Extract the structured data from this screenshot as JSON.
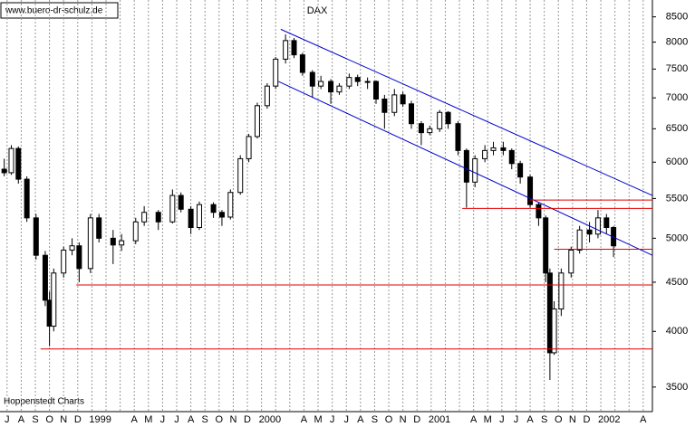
{
  "site": "www.buero-dr-schulz.de",
  "source": "Hoppenstedt Charts",
  "chart_data": {
    "type": "candlestick",
    "title": "DAX",
    "log_scale": true,
    "grid": true,
    "categories": [
      "J",
      "A",
      "S",
      "O",
      "N",
      "D",
      "1999",
      null,
      null,
      "A",
      "M",
      "J",
      "J",
      "A",
      "S",
      "O",
      "N",
      "D",
      "2000",
      null,
      null,
      "A",
      "M",
      "J",
      "J",
      "A",
      "S",
      "O",
      "N",
      "D",
      "2001",
      null,
      null,
      "A",
      "M",
      "J",
      "J",
      "A",
      "S",
      "O",
      "N",
      "D",
      "2002",
      null,
      null,
      "A"
    ],
    "xlim": [
      -0.5,
      45.65
    ],
    "ylim": [
      3300,
      8850
    ],
    "yticks": [
      3500,
      4000,
      4500,
      5000,
      5500,
      6000,
      6500,
      7000,
      7500,
      8000,
      8500
    ],
    "up_color": "#ffffff",
    "down_color": "#000000",
    "x": [
      -0.2,
      0.3,
      0.8,
      1.4,
      2.05,
      2.7,
      3.0,
      3.3,
      4.0,
      4.6,
      5.1,
      5.9,
      6.5,
      7.5,
      8.1,
      9.1,
      9.7,
      10.7,
      11.7,
      12.3,
      13.0,
      13.6,
      14.6,
      15.2,
      15.8,
      16.5,
      17.1,
      17.7,
      18.4,
      19.0,
      19.7,
      20.3,
      20.9,
      21.6,
      22.2,
      22.9,
      23.5,
      24.2,
      24.8,
      25.5,
      26.1,
      26.7,
      27.4,
      28.0,
      28.6,
      29.3,
      29.9,
      30.6,
      31.2,
      31.9,
      32.5,
      33.1,
      33.8,
      34.4,
      35.1,
      35.7,
      36.3,
      37.0,
      37.6,
      38.1,
      38.4,
      38.7,
      39.2,
      39.9,
      40.5,
      41.2,
      41.8,
      42.4,
      42.9
    ],
    "open": [
      5900,
      5850,
      6200,
      5760,
      5250,
      4800,
      4310,
      4050,
      4600,
      4860,
      4910,
      4650,
      5250,
      5000,
      4920,
      4970,
      5200,
      5320,
      5200,
      5540,
      5360,
      5130,
      5420,
      5320,
      5260,
      5580,
      6050,
      6380,
      6870,
      7200,
      7680,
      8030,
      7760,
      7440,
      7200,
      7280,
      7100,
      7200,
      7350,
      7280,
      7280,
      6980,
      6760,
      7050,
      6900,
      6580,
      6440,
      6500,
      6760,
      6580,
      6170,
      5720,
      6050,
      6170,
      6210,
      6170,
      5980,
      5790,
      5420,
      5250,
      4600,
      3800,
      4220,
      4600,
      4860,
      5100,
      5050,
      5250,
      5130
    ],
    "high": [
      6050,
      6250,
      6230,
      5800,
      5300,
      4850,
      4400,
      4650,
      4900,
      5000,
      4950,
      5300,
      5300,
      5100,
      5050,
      5250,
      5400,
      5350,
      5620,
      5580,
      5400,
      5460,
      5450,
      5350,
      5620,
      6100,
      6420,
      6920,
      7250,
      7720,
      8150,
      8080,
      7800,
      7480,
      7380,
      7320,
      7250,
      7420,
      7400,
      7350,
      7300,
      7050,
      7150,
      7100,
      6950,
      6620,
      6550,
      6800,
      6780,
      6620,
      6200,
      6100,
      6250,
      6300,
      6300,
      6200,
      6020,
      5820,
      5450,
      5280,
      4650,
      4300,
      4650,
      4900,
      5150,
      5200,
      5350,
      5300,
      5150
    ],
    "low": [
      5800,
      5820,
      5700,
      5200,
      4750,
      4250,
      3860,
      4000,
      4550,
      4800,
      4500,
      4600,
      4950,
      4700,
      4850,
      4930,
      5150,
      5100,
      5180,
      5320,
      5050,
      5100,
      5250,
      5150,
      5230,
      5550,
      6000,
      6350,
      6820,
      7150,
      7600,
      7700,
      7380,
      7000,
      7150,
      6900,
      7050,
      7150,
      7200,
      7150,
      6900,
      6500,
      6700,
      6850,
      6500,
      6250,
      6400,
      6450,
      6500,
      6100,
      5380,
      5650,
      6000,
      6100,
      6100,
      5900,
      5700,
      5380,
      5150,
      4500,
      3560,
      3780,
      4150,
      4550,
      4820,
      4950,
      5000,
      5050,
      4780
    ],
    "close": [
      5850,
      6200,
      5760,
      5250,
      4800,
      4310,
      4050,
      4600,
      4860,
      4910,
      4650,
      5250,
      5000,
      4920,
      4970,
      5200,
      5320,
      5200,
      5540,
      5360,
      5130,
      5420,
      5320,
      5260,
      5580,
      6050,
      6380,
      6870,
      7200,
      7680,
      8030,
      7760,
      7440,
      7200,
      7280,
      7100,
      7200,
      7350,
      7280,
      7280,
      6980,
      6760,
      7050,
      6900,
      6580,
      6440,
      6500,
      6760,
      6580,
      6170,
      5720,
      6050,
      6170,
      6210,
      6170,
      5980,
      5790,
      5420,
      5250,
      4600,
      3800,
      4220,
      4600,
      4860,
      5100,
      5050,
      5250,
      5130,
      4910
    ],
    "lines": [
      {
        "color": "#0000cc",
        "x": [
          19.36,
          45.65
        ],
        "values": [
          8250,
          5540
        ]
      },
      {
        "color": "#0000cc",
        "x": [
          19.2,
          45.65
        ],
        "values": [
          7280,
          4800
        ]
      },
      {
        "color": "#e00000",
        "x": [
          2.37,
          45.65
        ],
        "values": [
          3835,
          3835
        ]
      },
      {
        "color": "#e00000",
        "x": [
          4.9,
          45.65
        ],
        "values": [
          4470,
          4470
        ]
      },
      {
        "color": "#e00000",
        "x": [
          32.2,
          45.65
        ],
        "values": [
          5370,
          5370
        ]
      },
      {
        "color": "#e00000",
        "x": [
          37.0,
          45.65
        ],
        "values": [
          5480,
          5480
        ]
      },
      {
        "color": "#e00000",
        "x": [
          38.7,
          45.65
        ],
        "values": [
          4870,
          4870
        ]
      }
    ]
  }
}
